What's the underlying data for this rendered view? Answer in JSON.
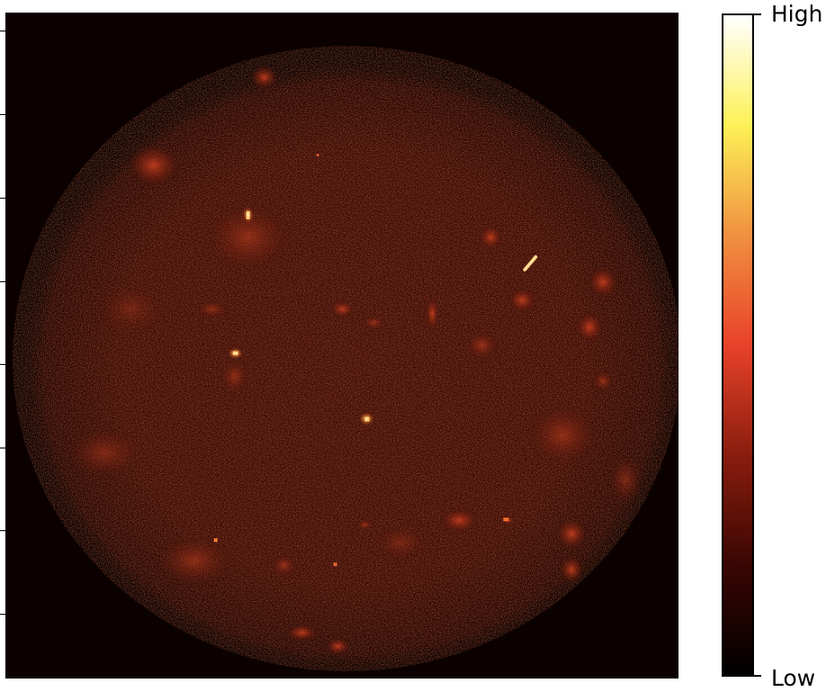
{
  "colorbar": {
    "high_label": "High",
    "low_label": "Low",
    "colormap": "afmhot",
    "stops": [
      "#000000",
      "#3a0603",
      "#8a1d0e",
      "#e8422a",
      "#f09040",
      "#fdf157",
      "#ffffff"
    ]
  },
  "image": {
    "description_colors": {
      "background": "#0b0101",
      "glow": "#5a170a",
      "hotspot": "#ffe8a0"
    }
  }
}
